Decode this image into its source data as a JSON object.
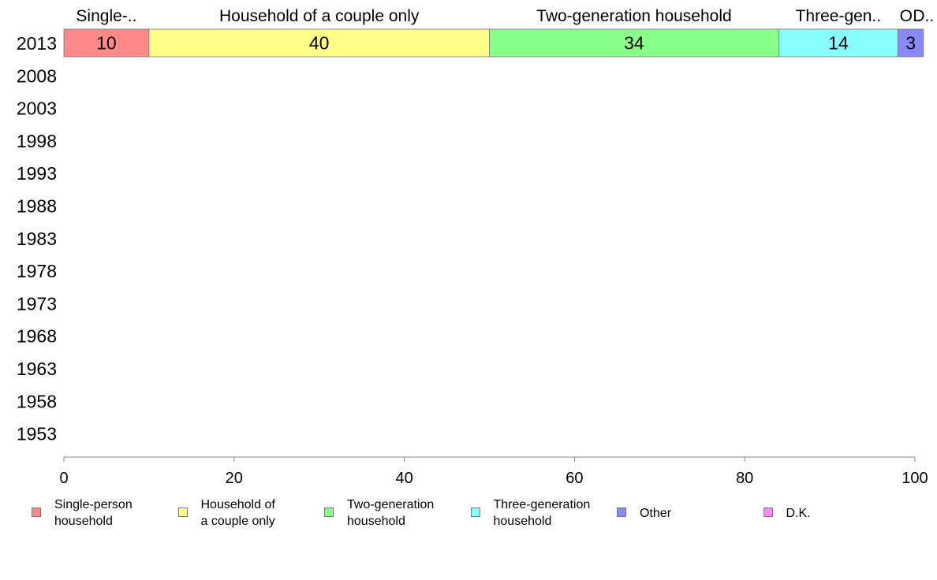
{
  "chart_data": {
    "type": "bar",
    "orientation": "horizontal",
    "stacked": true,
    "categories": [
      "2013",
      "2008",
      "2003",
      "1998",
      "1993",
      "1988",
      "1983",
      "1978",
      "1973",
      "1968",
      "1963",
      "1958",
      "1953"
    ],
    "series": [
      {
        "name": "Single-person household",
        "legend_label": "Single-person\nhousehold",
        "top_label": "Single-..",
        "color": "#ff8888",
        "values": [
          10,
          null,
          null,
          null,
          null,
          null,
          null,
          null,
          null,
          null,
          null,
          null,
          null
        ]
      },
      {
        "name": "Household of a couple only",
        "legend_label": "Household of\na couple only",
        "top_label": "Household of a couple only",
        "color": "#ffff88",
        "values": [
          40,
          null,
          null,
          null,
          null,
          null,
          null,
          null,
          null,
          null,
          null,
          null,
          null
        ]
      },
      {
        "name": "Two-generation household",
        "legend_label": "Two-generation\nhousehold",
        "top_label": "Two-generation household",
        "color": "#88ff88",
        "values": [
          34,
          null,
          null,
          null,
          null,
          null,
          null,
          null,
          null,
          null,
          null,
          null,
          null
        ]
      },
      {
        "name": "Three-generation household",
        "legend_label": "Three-generation\nhousehold",
        "top_label": "Three-gen..",
        "color": "#88ffff",
        "values": [
          14,
          null,
          null,
          null,
          null,
          null,
          null,
          null,
          null,
          null,
          null,
          null,
          null
        ]
      },
      {
        "name": "Other",
        "legend_label": "Other",
        "top_label": "O..",
        "color": "#8888ff",
        "values": [
          3,
          null,
          null,
          null,
          null,
          null,
          null,
          null,
          null,
          null,
          null,
          null,
          null
        ]
      },
      {
        "name": "D.K.",
        "legend_label": "D.K.",
        "top_label": "D..",
        "color": "#ff88ff",
        "values": [
          0,
          null,
          null,
          null,
          null,
          null,
          null,
          null,
          null,
          null,
          null,
          null,
          null
        ]
      }
    ],
    "data_labels": [
      "10",
      "40",
      "34",
      "14",
      "3",
      ""
    ],
    "xlim": [
      0,
      100
    ],
    "xticks": [
      "0",
      "20",
      "40",
      "60",
      "80",
      "100"
    ],
    "grid": false,
    "legend_position": "bottom"
  }
}
